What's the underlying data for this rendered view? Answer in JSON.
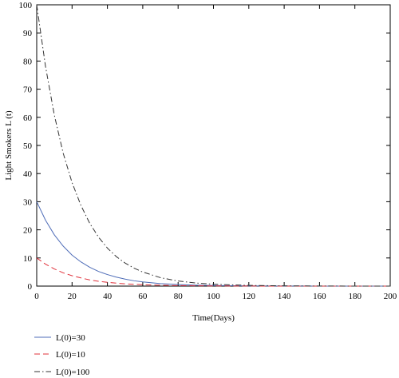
{
  "chart_data": {
    "type": "line",
    "title": "",
    "xlabel": "Time(Days)",
    "ylabel": "Light Smokers L (t)",
    "xlim": [
      0,
      200
    ],
    "ylim": [
      0,
      100
    ],
    "xticks": [
      "0",
      "20",
      "40",
      "60",
      "80",
      "100",
      "120",
      "140",
      "160",
      "180",
      "200"
    ],
    "yticks": [
      "0",
      "10",
      "20",
      "30",
      "40",
      "50",
      "60",
      "70",
      "80",
      "90",
      "100"
    ],
    "grid": false,
    "legend_position": "bottom-left",
    "series": [
      {
        "name": "L(0)=30",
        "color": "#4f6db8",
        "dash": "solid",
        "x": [
          0,
          5,
          10,
          15,
          20,
          25,
          30,
          35,
          40,
          45,
          50,
          55,
          60,
          70,
          80,
          90,
          100,
          120,
          140,
          160,
          180,
          200
        ],
        "y": [
          30,
          23.4,
          18.2,
          14.2,
          11.0,
          8.6,
          6.7,
          5.2,
          4.1,
          3.2,
          2.5,
          1.9,
          1.5,
          0.9,
          0.55,
          0.33,
          0.2,
          0.07,
          0.03,
          0.01,
          0,
          0
        ]
      },
      {
        "name": "L(0)=10",
        "color": "#e0303a",
        "dash": "dashed",
        "x": [
          0,
          5,
          10,
          15,
          20,
          25,
          30,
          35,
          40,
          45,
          50,
          55,
          60,
          70,
          80,
          90,
          100,
          120,
          140,
          160,
          180,
          200
        ],
        "y": [
          10,
          7.8,
          6.1,
          4.7,
          3.7,
          2.9,
          2.2,
          1.7,
          1.35,
          1.05,
          0.82,
          0.64,
          0.5,
          0.3,
          0.18,
          0.11,
          0.07,
          0.02,
          0.01,
          0,
          0,
          0
        ]
      },
      {
        "name": "L(0)=100",
        "color": "#333333",
        "dash": "dashdot",
        "x": [
          0,
          5,
          10,
          15,
          20,
          25,
          30,
          35,
          40,
          45,
          50,
          55,
          60,
          70,
          80,
          90,
          100,
          120,
          140,
          160,
          180,
          200
        ],
        "y": [
          100,
          78,
          60.7,
          47.2,
          36.8,
          28.7,
          22.3,
          17.4,
          13.5,
          10.5,
          8.2,
          6.4,
          5.0,
          3.0,
          1.8,
          1.1,
          0.67,
          0.25,
          0.09,
          0.03,
          0.01,
          0
        ]
      }
    ]
  }
}
